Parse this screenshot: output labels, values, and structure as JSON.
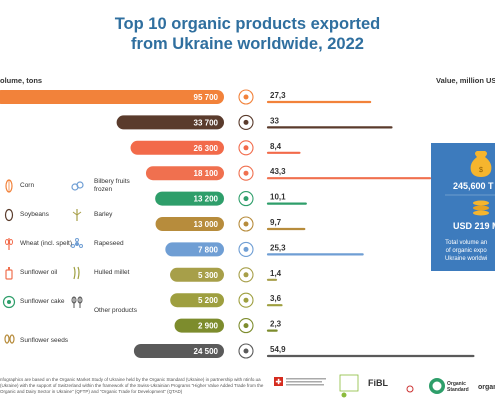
{
  "title_line1": "Top 10 organic products exported",
  "title_line2": "from Ukraine worldwide, 2022",
  "axis_left_label": "olume, tons",
  "axis_right_label": "Value, million US",
  "colors": {
    "title": "#2f6f9f",
    "volume_bars": [
      "#f2823a",
      "#5a3b2c",
      "#f26a4a",
      "#f0704f",
      "#2e9e6a",
      "#b78c3c",
      "#6f9ed4",
      "#a79f49",
      "#9e9f3f",
      "#7d8c2d",
      "#5a5a5a"
    ],
    "value_lines": [
      "#f2823a",
      "#5a3b2c",
      "#f26a4a",
      "#f0704f",
      "#2e9e6a",
      "#b78c3c",
      "#6f9ed4",
      "#a79f49",
      "#9e9f3f",
      "#7d8c2d",
      "#5a5a5a"
    ],
    "info_panel": "#3d7bbd"
  },
  "legend": {
    "items": [
      {
        "label": "Corn",
        "icon": "corn-icon"
      },
      {
        "label": "Bilbery fruits frozen",
        "icon": "bilberry-icon"
      },
      {
        "label": "Soybeans",
        "icon": "soybean-icon"
      },
      {
        "label": "Barley",
        "icon": "barley-icon"
      },
      {
        "label": "Wheat (incl. spelt)",
        "icon": "wheat-icon"
      },
      {
        "label": "Rapeseed",
        "icon": "rapeseed-icon"
      },
      {
        "label": "Sunflower oil",
        "icon": "oil-bottle-icon"
      },
      {
        "label": "Hulled millet",
        "icon": "millet-icon"
      },
      {
        "label": "Sunflower cake",
        "icon": "cake-icon"
      },
      {
        "label": "Other products",
        "icon": "other-products-icon"
      },
      {
        "label": "Sunflower seeds",
        "icon": "seeds-icon"
      }
    ]
  },
  "chart_data": {
    "type": "bar",
    "rows": [
      {
        "volume": 95700,
        "volume_label": "95 700",
        "value": 27.3,
        "value_label": "27,3",
        "icon": "corn-icon"
      },
      {
        "volume": 33700,
        "volume_label": "33 700",
        "value": 33,
        "value_label": "33",
        "icon": "soybean-icon"
      },
      {
        "volume": 26300,
        "volume_label": "26 300",
        "value": 8.4,
        "value_label": "8,4",
        "icon": "wheat-icon"
      },
      {
        "volume": 18100,
        "volume_label": "18 100",
        "value": 43.3,
        "value_label": "43,3",
        "icon": "oil-bottle-icon"
      },
      {
        "volume": 13200,
        "volume_label": "13 200",
        "value": 10.1,
        "value_label": "10,1",
        "icon": "cake-icon"
      },
      {
        "volume": 13000,
        "volume_label": "13 000",
        "value": 9.7,
        "value_label": "9,7",
        "icon": "seeds-icon"
      },
      {
        "volume": 7800,
        "volume_label": "7 800",
        "value": 25.3,
        "value_label": "25,3",
        "icon": "rapeseed-icon"
      },
      {
        "volume": 5300,
        "volume_label": "5 300",
        "value": 1.4,
        "value_label": "1,4",
        "icon": "barley-icon"
      },
      {
        "volume": 5200,
        "volume_label": "5 200",
        "value": 3.6,
        "value_label": "3,6",
        "icon": "millet-icon"
      },
      {
        "volume": 2900,
        "volume_label": "2 900",
        "value": 2.3,
        "value_label": "2,3",
        "icon": "bilberry-icon"
      },
      {
        "volume": 24500,
        "volume_label": "24 500",
        "value": 54.9,
        "value_label": "54,9",
        "icon": "other-products-icon"
      }
    ]
  },
  "info_panel": {
    "volume_total": "245,600 T",
    "value_total": "USD 219 MI",
    "caption_line1": "Total volume an",
    "caption_line2": "of organic expo",
    "caption_line3": "Ukraine worldwi"
  },
  "footer": {
    "text": "nfographics are based on the Organic Market Study of Ukraine held by the Organic Standard (Ukraine) in partnership with ntinfo.ua (Ukraine) with the support of Switzerland within the framework of the Swiss-Ukrainian Programs \"Higher Value Added Trade from the Organic and Dairy Sector in Ukraine\" (QFTP) and \"Organic Trade for Development\" (QTAD)"
  },
  "logos": {
    "fibl": "FiBL",
    "organic_standard": "Organic Standard",
    "organic_short": "organ"
  }
}
